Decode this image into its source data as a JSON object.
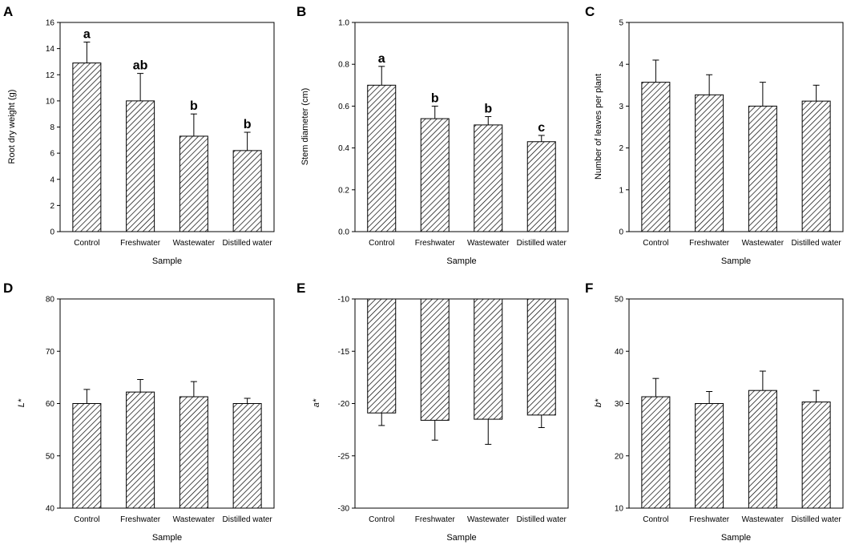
{
  "chart_data": [
    {
      "panel": "A",
      "type": "bar",
      "xlabel": "Sample",
      "ylabel": "Root dry weight (g)",
      "categories": [
        "Control",
        "Freshwater",
        "Wastewater",
        "Distilled water"
      ],
      "values": [
        12.9,
        10.0,
        7.3,
        6.2
      ],
      "errors": [
        1.6,
        2.1,
        1.7,
        1.4
      ],
      "labels": [
        "a",
        "ab",
        "b",
        "b"
      ],
      "ylim": [
        0,
        16
      ],
      "yticks": [
        "0",
        "2",
        "4",
        "6",
        "8",
        "10",
        "12",
        "14",
        "16"
      ]
    },
    {
      "panel": "B",
      "type": "bar",
      "xlabel": "Sample",
      "ylabel": "Stem diameter (cm)",
      "categories": [
        "Control",
        "Freshwater",
        "Wastewater",
        "Distilled water"
      ],
      "values": [
        0.7,
        0.54,
        0.51,
        0.43
      ],
      "errors": [
        0.09,
        0.06,
        0.04,
        0.03
      ],
      "labels": [
        "a",
        "b",
        "b",
        "c"
      ],
      "ylim": [
        0,
        1
      ],
      "yticks": [
        "0.0",
        "0.2",
        "0.4",
        "0.6",
        "0.8",
        "1.0"
      ]
    },
    {
      "panel": "C",
      "type": "bar",
      "xlabel": "Sample",
      "ylabel": "Number of leaves per plant",
      "categories": [
        "Control",
        "Freshwater",
        "Wastewater",
        "Distilled water"
      ],
      "values": [
        3.57,
        3.27,
        3.0,
        3.12
      ],
      "errors": [
        0.53,
        0.48,
        0.57,
        0.38
      ],
      "labels": [],
      "ylim": [
        0,
        5
      ],
      "yticks": [
        "0",
        "1",
        "2",
        "3",
        "4",
        "5"
      ]
    },
    {
      "panel": "D",
      "type": "bar",
      "xlabel": "Sample",
      "ylabel": "L*",
      "categories": [
        "Control",
        "Freshwater",
        "Wastewater",
        "Distilled water"
      ],
      "values": [
        60.0,
        62.2,
        61.3,
        60.0
      ],
      "errors": [
        2.7,
        2.4,
        2.9,
        1.0
      ],
      "labels": [],
      "ylim": [
        40,
        80
      ],
      "yticks": [
        "40",
        "50",
        "60",
        "70",
        "80"
      ]
    },
    {
      "panel": "E",
      "type": "bar",
      "xlabel": "Sample",
      "ylabel": "a*",
      "categories": [
        "Control",
        "Freshwater",
        "Wastewater",
        "Distilled water"
      ],
      "values": [
        -20.9,
        -21.6,
        -21.5,
        -21.1
      ],
      "errors": [
        1.2,
        1.9,
        2.4,
        1.2
      ],
      "labels": [],
      "ylim": [
        -30,
        -10
      ],
      "yticks": [
        "-30",
        "-25",
        "-20",
        "-15",
        "-10"
      ]
    },
    {
      "panel": "F",
      "type": "bar",
      "xlabel": "Sample",
      "ylabel": "b*",
      "categories": [
        "Control",
        "Freshwater",
        "Wastewater",
        "Distilled water"
      ],
      "values": [
        31.3,
        30.0,
        32.5,
        30.3
      ],
      "errors": [
        3.5,
        2.3,
        3.7,
        2.2
      ],
      "labels": [],
      "ylim": [
        10,
        50
      ],
      "yticks": [
        "10",
        "20",
        "30",
        "40",
        "50"
      ]
    }
  ]
}
